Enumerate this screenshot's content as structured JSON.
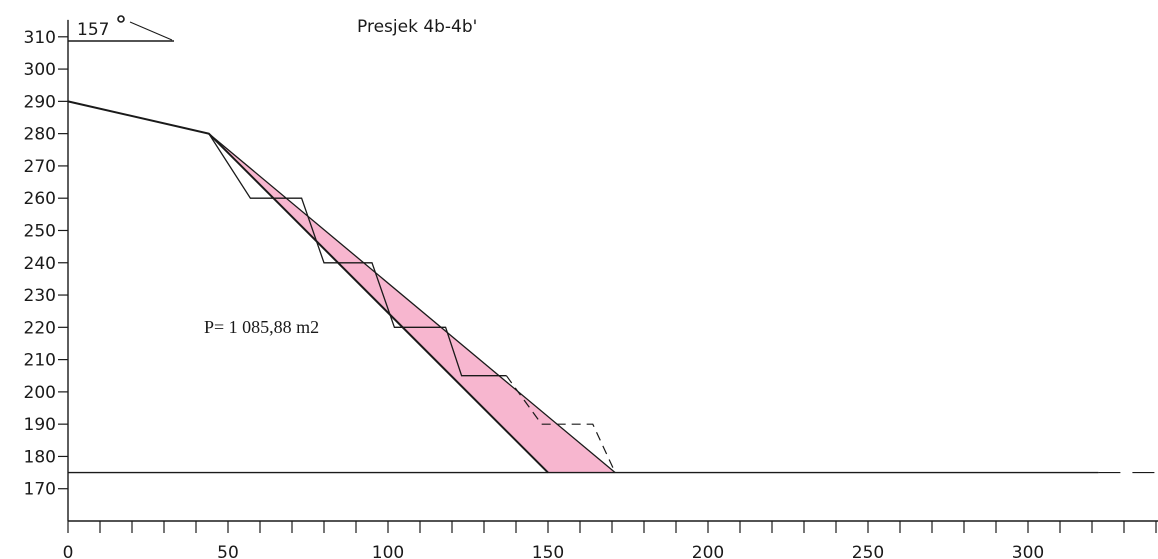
{
  "title": "Presjek 4b-4b'",
  "azimuth_label": "157",
  "area_label": "P= 1 085,88 m2",
  "colors": {
    "fill": "#f7b6cf",
    "line": "#1a1a1a"
  },
  "axes": {
    "x_ticks": [
      0,
      50,
      100,
      150,
      200,
      250,
      300
    ],
    "x_minor_step": 10,
    "x_range": [
      0,
      340
    ],
    "y_ticks": [
      170,
      180,
      190,
      200,
      210,
      220,
      230,
      240,
      250,
      260,
      270,
      280,
      290,
      300,
      310
    ],
    "y_range": [
      160,
      314
    ]
  },
  "profile": {
    "ground": [
      [
        0,
        290
      ],
      [
        44,
        280
      ],
      [
        150,
        175
      ]
    ],
    "final_slope": [
      [
        44,
        280
      ],
      [
        171,
        175
      ]
    ],
    "benches_solid": [
      [
        44,
        280
      ],
      [
        57,
        260
      ],
      [
        73,
        260
      ],
      [
        80,
        240
      ],
      [
        95,
        240
      ],
      [
        102,
        220
      ],
      [
        118,
        220
      ],
      [
        123,
        205
      ],
      [
        137,
        205
      ]
    ],
    "benches_dashed": [
      [
        137,
        205
      ],
      [
        148,
        190
      ],
      [
        164,
        190
      ],
      [
        171,
        175
      ]
    ],
    "shaded_area": [
      [
        44,
        280
      ],
      [
        150,
        175
      ],
      [
        171,
        175
      ]
    ],
    "base_level": 175,
    "base_solid_to": 322,
    "base_dashed_to": 340
  }
}
